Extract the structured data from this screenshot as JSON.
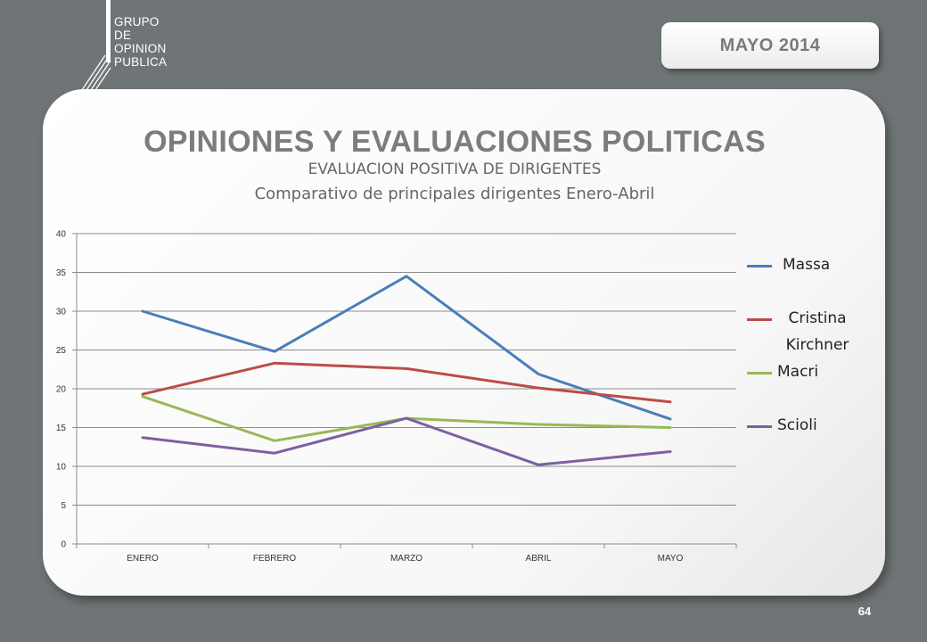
{
  "logo": {
    "lines": [
      "GRUPO",
      "DE",
      "OPINION",
      "PUBLICA"
    ]
  },
  "header": {
    "date": "MAYO  2014"
  },
  "slide": {
    "title": "OPINIONES Y EVALUACIONES POLITICAS",
    "subtitle": "EVALUACION POSITIVA DE DIRIGENTES",
    "subtitle2": "Comparativo de principales dirigentes Enero-Abril",
    "page_number": "64"
  },
  "chart_data": {
    "type": "line",
    "categories": [
      "ENERO",
      "FEBRERO",
      "MARZO",
      "ABRIL",
      "MAYO"
    ],
    "ylim": [
      0,
      40
    ],
    "yticks": [
      0,
      5,
      10,
      15,
      20,
      25,
      30,
      35,
      40
    ],
    "grid": true,
    "legend_position": "right",
    "series": [
      {
        "name": "Massa",
        "color": "#4a7ebb",
        "values": [
          30,
          24.8,
          34.5,
          21.9,
          16.1
        ]
      },
      {
        "name": "Cristina Kirchner",
        "color": "#be4b48",
        "values": [
          19.3,
          23.3,
          22.6,
          20.1,
          18.3
        ]
      },
      {
        "name": "Macri",
        "color": "#98b954",
        "values": [
          19,
          13.3,
          16.2,
          15.4,
          15
        ]
      },
      {
        "name": "Scioli",
        "color": "#7d60a0",
        "values": [
          13.7,
          11.7,
          16.2,
          10.2,
          11.9
        ]
      }
    ]
  }
}
